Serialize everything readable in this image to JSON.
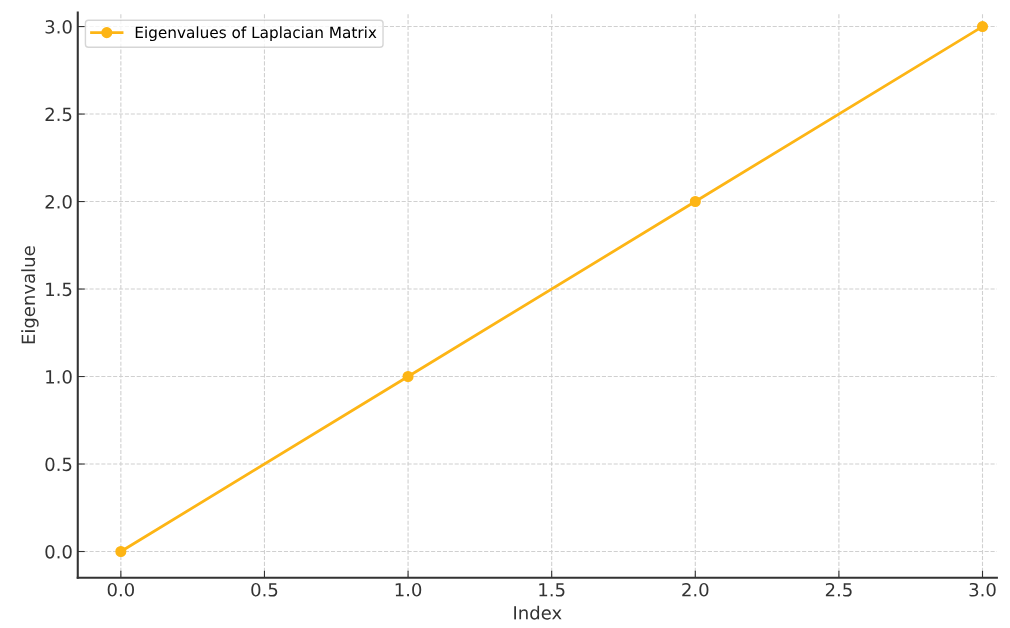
{
  "chart_data": {
    "type": "line",
    "xlabel": "Index",
    "ylabel": "Eigenvalue",
    "x": [
      0,
      1,
      2,
      3
    ],
    "series": [
      {
        "name": "Eigenvalues of Laplacian Matrix",
        "color": "#fdb515",
        "values": [
          0,
          1,
          2,
          3
        ]
      }
    ],
    "xlim": [
      -0.15,
      3.05
    ],
    "ylim": [
      -0.15,
      3.08
    ],
    "xticks": [
      {
        "value": 0,
        "label": "0.0"
      },
      {
        "value": 0.5,
        "label": "0.5"
      },
      {
        "value": 1,
        "label": "1.0"
      },
      {
        "value": 1.5,
        "label": "1.5"
      },
      {
        "value": 2,
        "label": "2.0"
      },
      {
        "value": 2.5,
        "label": "2.5"
      },
      {
        "value": 3,
        "label": "3.0"
      }
    ],
    "yticks": [
      {
        "value": 0,
        "label": "0.0"
      },
      {
        "value": 0.5,
        "label": "0.5"
      },
      {
        "value": 1,
        "label": "1.0"
      },
      {
        "value": 1.5,
        "label": "1.5"
      },
      {
        "value": 2,
        "label": "2.0"
      },
      {
        "value": 2.5,
        "label": "2.5"
      },
      {
        "value": 3,
        "label": "3.0"
      }
    ],
    "grid": true,
    "legend": "top left",
    "marker": "circle",
    "line_style": "solid"
  }
}
